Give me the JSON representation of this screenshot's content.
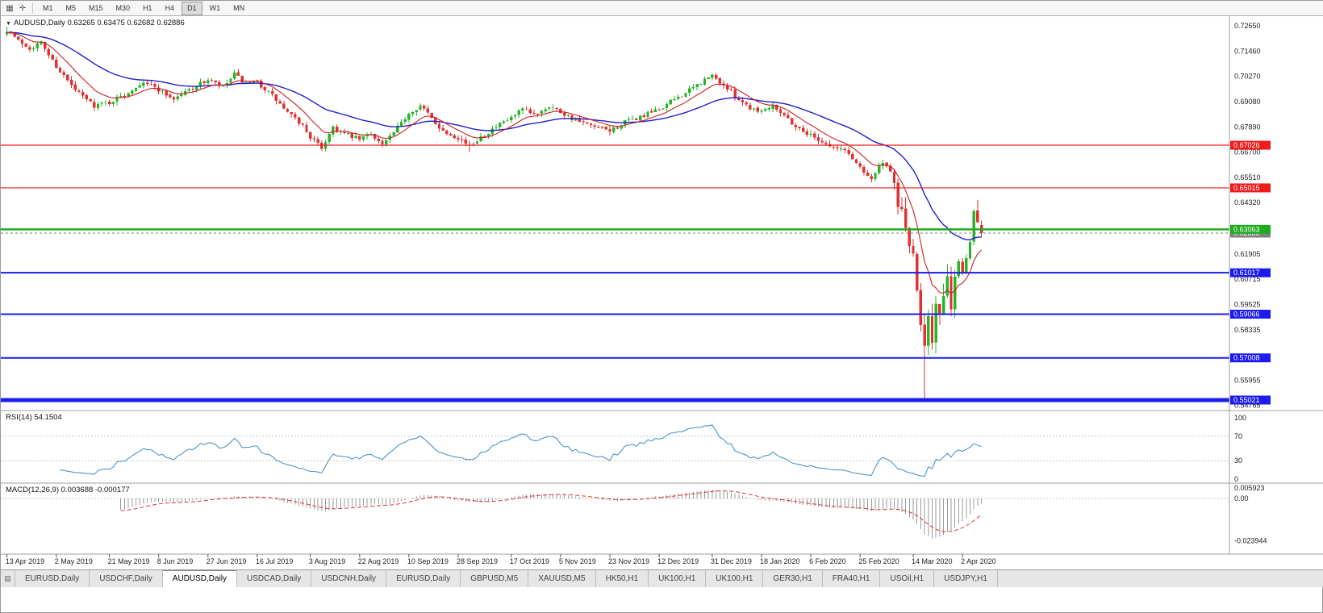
{
  "toolbar": {
    "icons": [
      {
        "name": "charts-bar-icon",
        "glyph": "▦"
      },
      {
        "name": "crosshair-icon",
        "glyph": "✛"
      }
    ],
    "timeframes": [
      "M1",
      "M5",
      "M15",
      "M30",
      "H1",
      "H4",
      "D1",
      "W1",
      "MN"
    ],
    "active_timeframe": "D1"
  },
  "quote": {
    "symbol_period": "AUDUSD,Daily",
    "ohlc_text": "0.63265 0.63475 0.62682 0.62886"
  },
  "chart_data": {
    "type": "candlestick",
    "symbol": "AUDUSD",
    "timeframe": "Daily",
    "last_candle": {
      "open": 0.63265,
      "high": 0.63475,
      "low": 0.62682,
      "close": 0.62886
    },
    "price_axis_ticks": [
      0.7265,
      0.7146,
      0.7027,
      0.6908,
      0.6789,
      0.667,
      0.6551,
      0.6432,
      0.61905,
      0.60715,
      0.59525,
      0.58335,
      0.55955,
      0.54765
    ],
    "hlines": [
      {
        "price": 0.67026,
        "label": "0.67026",
        "color": "#ee1c1c",
        "width": 1.2,
        "dashed": false
      },
      {
        "price": 0.65015,
        "label": "0.65015",
        "color": "#ee1c1c",
        "width": 1.2,
        "dashed": false
      },
      {
        "price": 0.62886,
        "label": "0.62886",
        "color": "#808080",
        "width": 1,
        "dashed": true
      },
      {
        "price": 0.63063,
        "label": "0.63063",
        "color": "#1fab1f",
        "width": 2.5,
        "dashed": false
      },
      {
        "price": 0.61017,
        "label": "0.61017",
        "color": "#1c1cee",
        "width": 2,
        "dashed": false
      },
      {
        "price": 0.59066,
        "label": "0.59066",
        "color": "#1c1cee",
        "width": 2,
        "dashed": false
      },
      {
        "price": 0.57008,
        "label": "0.57008",
        "color": "#1c1cee",
        "width": 2,
        "dashed": false
      },
      {
        "price": 0.55021,
        "label": "0.55021",
        "color": "#1c1cee",
        "width": 5,
        "dashed": false
      }
    ],
    "x_dates": [
      "13 Apr 2019",
      "2 May 2019",
      "21 May 2019",
      "8 Jun 2019",
      "27 Jun 2019",
      "16 Jul 2019",
      "3 Aug 2019",
      "22 Aug 2019",
      "10 Sep 2019",
      "28 Sep 2019",
      "17 Oct 2019",
      "5 Nov 2019",
      "23 Nov 2019",
      "12 Dec 2019",
      "31 Dec 2019",
      "18 Jan 2020",
      "6 Feb 2020",
      "25 Feb 2020",
      "14 Mar 2020",
      "2 Apr 2020"
    ],
    "x_tick_indices": [
      0,
      13,
      27,
      40,
      53,
      66,
      80,
      93,
      106,
      119,
      133,
      146,
      159,
      172,
      186,
      199,
      212,
      225,
      239,
      252
    ],
    "num_candles": 258,
    "seed": 7,
    "price_range": [
      0.5456,
      0.7311
    ],
    "anchors": [
      [
        0,
        0.7245
      ],
      [
        3,
        0.7195
      ],
      [
        6,
        0.716
      ],
      [
        9,
        0.7185
      ],
      [
        13,
        0.7075
      ],
      [
        18,
        0.696
      ],
      [
        23,
        0.689
      ],
      [
        27,
        0.6905
      ],
      [
        31,
        0.694
      ],
      [
        36,
        0.7005
      ],
      [
        40,
        0.6965
      ],
      [
        44,
        0.692
      ],
      [
        48,
        0.6965
      ],
      [
        53,
        0.701
      ],
      [
        57,
        0.6975
      ],
      [
        60,
        0.7035
      ],
      [
        63,
        0.699
      ],
      [
        66,
        0.7
      ],
      [
        70,
        0.6935
      ],
      [
        74,
        0.6855
      ],
      [
        78,
        0.6795
      ],
      [
        80,
        0.674
      ],
      [
        83,
        0.669
      ],
      [
        86,
        0.679
      ],
      [
        89,
        0.6755
      ],
      [
        93,
        0.673
      ],
      [
        96,
        0.676
      ],
      [
        99,
        0.6705
      ],
      [
        102,
        0.676
      ],
      [
        106,
        0.6855
      ],
      [
        109,
        0.689
      ],
      [
        112,
        0.683
      ],
      [
        115,
        0.677
      ],
      [
        119,
        0.674
      ],
      [
        122,
        0.67
      ],
      [
        125,
        0.6745
      ],
      [
        128,
        0.6775
      ],
      [
        133,
        0.683
      ],
      [
        136,
        0.687
      ],
      [
        139,
        0.6845
      ],
      [
        143,
        0.689
      ],
      [
        146,
        0.686
      ],
      [
        150,
        0.682
      ],
      [
        154,
        0.679
      ],
      [
        159,
        0.677
      ],
      [
        163,
        0.681
      ],
      [
        167,
        0.6835
      ],
      [
        172,
        0.687
      ],
      [
        176,
        0.692
      ],
      [
        180,
        0.696
      ],
      [
        184,
        0.701
      ],
      [
        186,
        0.703
      ],
      [
        189,
        0.6985
      ],
      [
        193,
        0.692
      ],
      [
        196,
        0.688
      ],
      [
        199,
        0.6865
      ],
      [
        202,
        0.6895
      ],
      [
        205,
        0.6845
      ],
      [
        208,
        0.679
      ],
      [
        212,
        0.675
      ],
      [
        215,
        0.672
      ],
      [
        218,
        0.669
      ],
      [
        221,
        0.668
      ],
      [
        225,
        0.66
      ],
      [
        228,
        0.6545
      ],
      [
        231,
        0.6625
      ],
      [
        233,
        0.656
      ],
      [
        235,
        0.644
      ],
      [
        237,
        0.632
      ],
      [
        239,
        0.616
      ],
      [
        240,
        0.6
      ],
      [
        241,
        0.587
      ],
      [
        242,
        0.578
      ],
      [
        243,
        0.592
      ],
      [
        244,
        0.58
      ],
      [
        245,
        0.595
      ],
      [
        246,
        0.589
      ],
      [
        247,
        0.598
      ],
      [
        248,
        0.605
      ],
      [
        249,
        0.596
      ],
      [
        250,
        0.608
      ],
      [
        251,
        0.615
      ],
      [
        252,
        0.61
      ],
      [
        253,
        0.618
      ],
      [
        254,
        0.625
      ],
      [
        255,
        0.64
      ],
      [
        256,
        0.634
      ],
      [
        257,
        0.62886
      ]
    ],
    "wick_overrides": {
      "0": {
        "high": 0.7262
      },
      "83": {
        "low": 0.6677
      },
      "122": {
        "low": 0.667
      },
      "242": {
        "low": 0.551
      },
      "256": {
        "high": 0.6445
      }
    },
    "candle_colors": {
      "up": "#28b428",
      "down": "#e03131"
    },
    "moving_averages": [
      {
        "period": 34,
        "color": "#2020cc",
        "width": 1.4
      },
      {
        "period": 10,
        "color": "#cc2020",
        "width": 1.1
      }
    ],
    "indicators": {
      "rsi": {
        "label": "RSI(14) 54.1504",
        "period": 14,
        "value": 54.1504,
        "color": "#4f94cd",
        "axis": [
          100,
          70,
          30,
          0
        ],
        "levels": [
          70,
          30
        ]
      },
      "macd": {
        "label": "MACD(12,26,9) 0.003688 -0.000177",
        "fast": 12,
        "slow": 26,
        "signal": 9,
        "value": 0.003688,
        "signal_value": -0.000177,
        "bar_color": "#9a9a9a",
        "signal_color": "#dd3333",
        "axis": [
          {
            "label": "0.005923",
            "value": 0.005923
          },
          {
            "label": "0.00",
            "value": 0
          },
          {
            "label": "-0.023944",
            "value": -0.023944
          }
        ]
      }
    }
  },
  "tabs": {
    "active_index": 2,
    "items": [
      "EURUSD,Daily",
      "USDCHF,Daily",
      "AUDUSD,Daily",
      "USDCAD,Daily",
      "USDCNH,Daily",
      "EURUSD,Daily",
      "GBPUSD,M5",
      "XAUUSD,M5",
      "HK50,H1",
      "UK100,H1",
      "UK100,H1",
      "GER30,H1",
      "FRA40,H1",
      "USOil,H1",
      "USDJPY,H1"
    ]
  }
}
